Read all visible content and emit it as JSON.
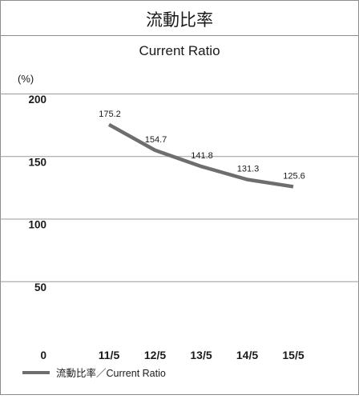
{
  "title_jp": "流動比率",
  "title_en": "Current Ratio",
  "y_unit": "(%)",
  "legend_label": "流動比率／Current Ratio",
  "colors": {
    "line": "#6e6e6e",
    "frame": "#8c8c8c",
    "grid": "#9a9a9a",
    "text": "#1a1a1a"
  },
  "chart_data": {
    "type": "line",
    "title": "流動比率",
    "subtitle": "Current Ratio",
    "ylabel": "(%)",
    "xlabel": "",
    "categories": [
      "11/5",
      "12/5",
      "13/5",
      "14/5",
      "15/5"
    ],
    "yticks": [
      0,
      50,
      100,
      150,
      200
    ],
    "ylim": [
      0,
      200
    ],
    "grid": true,
    "legend_position": "bottom-left",
    "series": [
      {
        "name": "流動比率／Current Ratio",
        "values": [
          175.2,
          154.7,
          141.8,
          131.3,
          125.6
        ],
        "labels": [
          "175.2",
          "154.7",
          "141.8",
          "131.3",
          "125.6"
        ]
      }
    ]
  }
}
